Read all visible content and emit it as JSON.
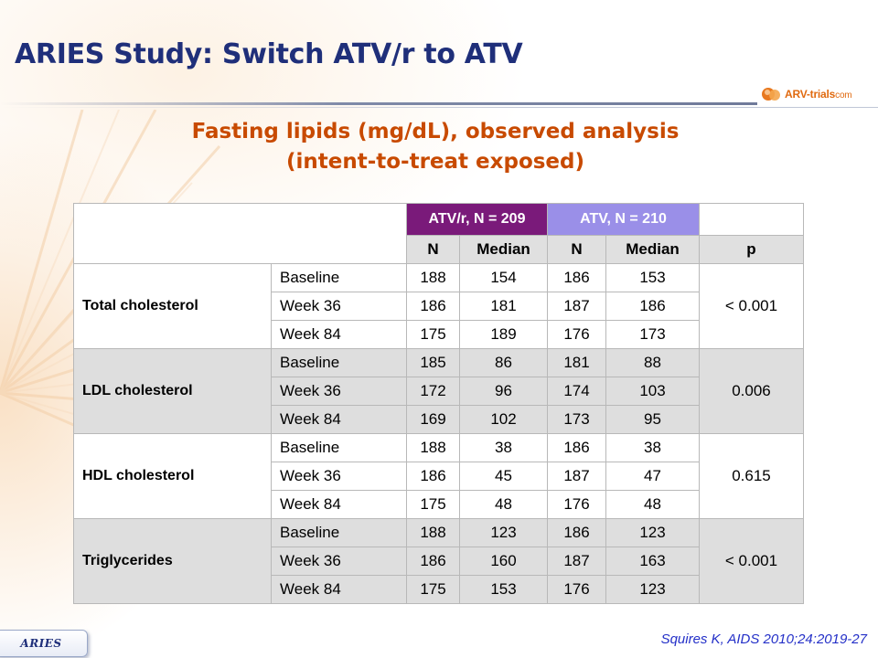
{
  "slide": {
    "title": "ARIES Study: Switch ATV/r to ATV",
    "subtitle_line1": "Fasting lipids (mg/dL), observed analysis",
    "subtitle_line2": "(intent-to-treat exposed)",
    "logo_text": "ARV-trials",
    "logo_suffix": "com",
    "footer_tab": "ARIES",
    "reference": "Squires K, AIDS 2010;24:2019-27"
  },
  "table": {
    "arm1_header": "ATV/r, N = 209",
    "arm2_header": "ATV, N = 210",
    "col_n": "N",
    "col_median": "Median",
    "col_p": "p",
    "groups": [
      {
        "label": "Total cholesterol",
        "p": "< 0.001",
        "rows": [
          {
            "visit": "Baseline",
            "n1": "188",
            "m1": "154",
            "n2": "186",
            "m2": "153"
          },
          {
            "visit": "Week 36",
            "n1": "186",
            "m1": "181",
            "n2": "187",
            "m2": "186"
          },
          {
            "visit": "Week 84",
            "n1": "175",
            "m1": "189",
            "n2": "176",
            "m2": "173"
          }
        ]
      },
      {
        "label": "LDL cholesterol",
        "p": "0.006",
        "rows": [
          {
            "visit": "Baseline",
            "n1": "185",
            "m1": "86",
            "n2": "181",
            "m2": "88"
          },
          {
            "visit": "Week 36",
            "n1": "172",
            "m1": "96",
            "n2": "174",
            "m2": "103"
          },
          {
            "visit": "Week 84",
            "n1": "169",
            "m1": "102",
            "n2": "173",
            "m2": "95"
          }
        ]
      },
      {
        "label": "HDL cholesterol",
        "p": "0.615",
        "rows": [
          {
            "visit": "Baseline",
            "n1": "188",
            "m1": "38",
            "n2": "186",
            "m2": "38"
          },
          {
            "visit": "Week 36",
            "n1": "186",
            "m1": "45",
            "n2": "187",
            "m2": "47"
          },
          {
            "visit": "Week 84",
            "n1": "175",
            "m1": "48",
            "n2": "176",
            "m2": "48"
          }
        ]
      },
      {
        "label": "Triglycerides",
        "p": "< 0.001",
        "rows": [
          {
            "visit": "Baseline",
            "n1": "188",
            "m1": "123",
            "n2": "186",
            "m2": "123"
          },
          {
            "visit": "Week 36",
            "n1": "186",
            "m1": "160",
            "n2": "187",
            "m2": "163"
          },
          {
            "visit": "Week 84",
            "n1": "175",
            "m1": "153",
            "n2": "176",
            "m2": "123"
          }
        ]
      }
    ]
  },
  "colors": {
    "title": "#1f2f7a",
    "subtitle": "#c84a00",
    "arm1_header_bg": "#7a1a7a",
    "arm2_header_bg": "#9a8fe8",
    "shaded_row_bg": "#dedede",
    "reference": "#2430c8"
  }
}
